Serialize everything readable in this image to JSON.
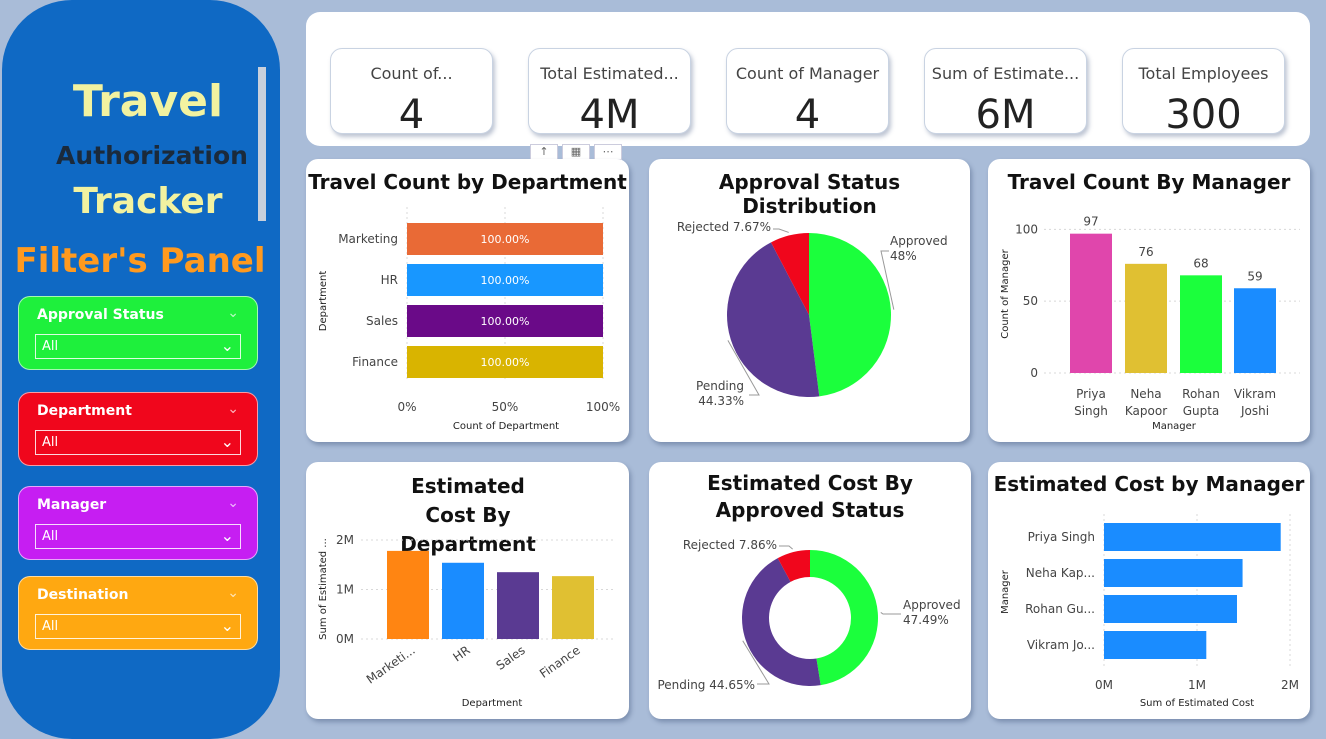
{
  "sidebar": {
    "title_line1": "Travel",
    "title_line2": "Authorization",
    "title_line3": "Tracker",
    "filters_heading": "Filter's Panel",
    "filters": [
      {
        "label": "Approval Status",
        "value": "All",
        "color": "#1ef03c"
      },
      {
        "label": "Department",
        "value": "All",
        "color": "#f0061c"
      },
      {
        "label": "Manager",
        "value": "All",
        "color": "#c61ef2"
      },
      {
        "label": "Destination",
        "value": "All",
        "color": "#ffa811"
      }
    ]
  },
  "kpis": [
    {
      "label": "Count of...",
      "value": "4"
    },
    {
      "label": "Total Estimated...",
      "value": "4M"
    },
    {
      "label": "Count of Manager",
      "value": "4"
    },
    {
      "label": "Sum of Estimate...",
      "value": "6M"
    },
    {
      "label": "Total Employees",
      "value": "300"
    }
  ],
  "chart_data": [
    {
      "id": "travel-count-by-department",
      "type": "bar",
      "orientation": "horizontal",
      "title": "Travel Count by Department",
      "xlabel": "Count of Department",
      "ylabel": "Department",
      "categories": [
        "Marketing",
        "HR",
        "Sales",
        "Finance"
      ],
      "values": [
        100,
        100,
        100,
        100
      ],
      "data_labels": [
        "100.00%",
        "100.00%",
        "100.00%",
        "100.00%"
      ],
      "colors": [
        "#e96a36",
        "#1897ff",
        "#6a0a88",
        "#d9b400"
      ],
      "xticks": [
        "0%",
        "50%",
        "100%"
      ],
      "xlim": [
        0,
        100
      ]
    },
    {
      "id": "approval-status-distribution",
      "type": "pie",
      "title": "Approval Status Distribution",
      "slices": [
        {
          "label": "Approved",
          "value": 48,
          "text": "48%",
          "color": "#1bff3c"
        },
        {
          "label": "Pending",
          "value": 44.33,
          "text": "44.33%",
          "color": "#5a3a92"
        },
        {
          "label": "Rejected",
          "value": 7.67,
          "text": "7.67%",
          "color": "#f0061c"
        }
      ]
    },
    {
      "id": "travel-count-by-manager",
      "type": "bar",
      "title": "Travel Count By Manager",
      "xlabel": "Manager",
      "ylabel": "Count of Manager",
      "categories": [
        "Priya Singh",
        "Neha Kapoor",
        "Rohan Gupta",
        "Vikram Joshi"
      ],
      "values": [
        97,
        76,
        68,
        59
      ],
      "colors": [
        "#e046ac",
        "#e0c032",
        "#1bff3c",
        "#1a8cff"
      ],
      "yticks": [
        0,
        50,
        100
      ],
      "ylim": [
        0,
        110
      ]
    },
    {
      "id": "estimated-cost-by-department",
      "type": "bar",
      "title": "Estimated Cost By Department",
      "xlabel": "Department",
      "ylabel": "Sum of Estimated ...",
      "categories": [
        "Marketi...",
        "HR",
        "Sales",
        "Finance"
      ],
      "values": [
        1.78,
        1.54,
        1.35,
        1.27
      ],
      "colors": [
        "#ff8512",
        "#1a8cff",
        "#5a3a92",
        "#e0c032"
      ],
      "yticks": [
        "0M",
        "1M",
        "2M"
      ],
      "ylim": [
        0,
        2
      ]
    },
    {
      "id": "estimated-cost-by-approved-status",
      "type": "pie",
      "donut": true,
      "title": "Estimated Cost By Approved Status",
      "slices": [
        {
          "label": "Approved",
          "value": 47.49,
          "text": "47.49%",
          "color": "#1bff3c"
        },
        {
          "label": "Pending",
          "value": 44.65,
          "text": "44.65%",
          "color": "#5a3a92"
        },
        {
          "label": "Rejected",
          "value": 7.86,
          "text": "7.86%",
          "color": "#f0061c"
        }
      ]
    },
    {
      "id": "estimated-cost-by-manager",
      "type": "bar",
      "orientation": "horizontal",
      "title": "Estimated Cost by Manager",
      "xlabel": "Sum of Estimated Cost",
      "ylabel": "Manager",
      "categories": [
        "Priya Singh",
        "Neha Kap...",
        "Rohan Gu...",
        "Vikram Jo..."
      ],
      "values": [
        1.9,
        1.49,
        1.43,
        1.1
      ],
      "colors": [
        "#1a8cff",
        "#1a8cff",
        "#1a8cff",
        "#1a8cff"
      ],
      "xticks": [
        "0M",
        "1M",
        "2M"
      ],
      "xlim": [
        0,
        2
      ]
    }
  ]
}
